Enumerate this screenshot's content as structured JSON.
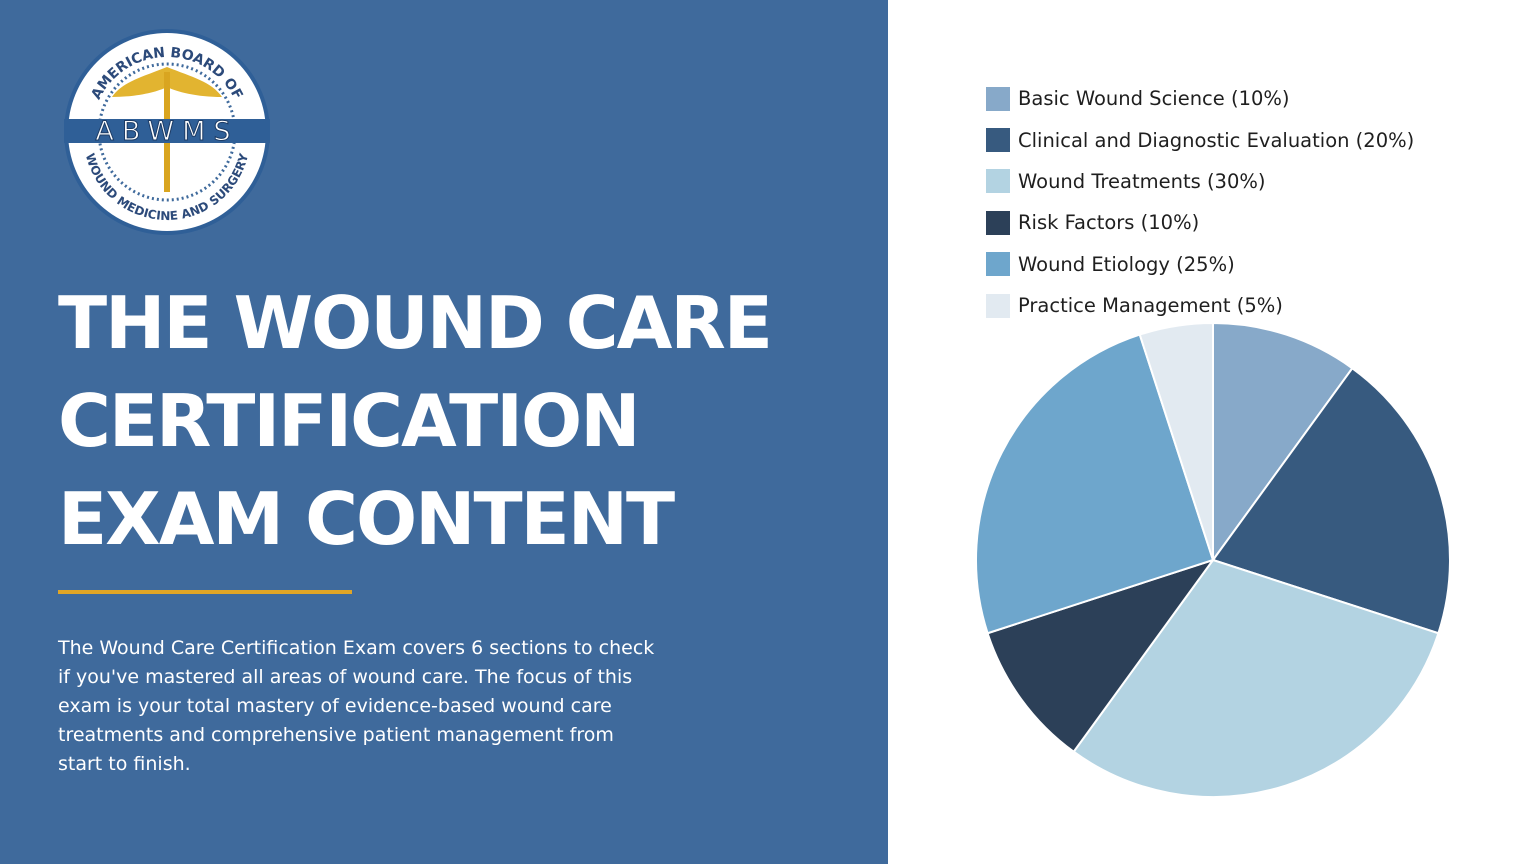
{
  "logo": {
    "top_text": "AMERICAN BOARD OF",
    "acronym": "ABWMS",
    "bottom_text": "WOUND MEDICINE AND SURGERY"
  },
  "title_lines": [
    "THE WOUND CARE",
    "CERTIFICATION",
    "EXAM CONTENT"
  ],
  "description": "The Wound Care Certification Exam covers 6 sections to check if you've mastered all areas of wound care. The focus of this exam is your total mastery of evidence-based wound care treatments and comprehensive patient management from start to finish.",
  "colors": {
    "panel": "#3f6a9c",
    "accent": "#e0a526"
  },
  "chart_data": {
    "type": "pie",
    "start": "top",
    "direction": "clockwise",
    "legend_placement": "top",
    "slices": [
      {
        "label": "Basic Wound Science (10%)",
        "value": 10,
        "color": "#87a9c9"
      },
      {
        "label": "Clinical and Diagnostic Evaluation (20%)",
        "value": 20,
        "color": "#375a7f"
      },
      {
        "label": "Wound Treatments (30%)",
        "value": 30,
        "color": "#b3d3e2"
      },
      {
        "label": "Risk Factors (10%)",
        "value": 10,
        "color": "#2c4058"
      },
      {
        "label": "Wound Etiology (25%)",
        "value": 25,
        "color": "#6ea6cc"
      },
      {
        "label": "Practice Management (5%)",
        "value": 5,
        "color": "#e2eaf1"
      }
    ]
  }
}
